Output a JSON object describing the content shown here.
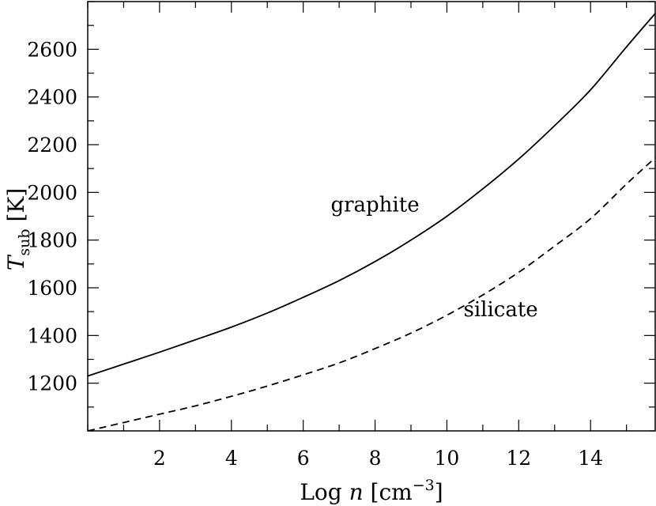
{
  "chart_data": {
    "type": "line",
    "title": "",
    "xlabel": {
      "prefix": "Log ",
      "var": "n",
      "unit_open": " [cm",
      "unit_exp": "−3",
      "unit_close": "]"
    },
    "ylabel": {
      "var": "T",
      "sub": "sub",
      "unit": " [K]"
    },
    "xlim": [
      0,
      15.8
    ],
    "ylim": [
      1000,
      2800
    ],
    "x_ticks": [
      2,
      4,
      6,
      8,
      10,
      12,
      14
    ],
    "x_tick_labels": [
      "2",
      "4",
      "6",
      "8",
      "10",
      "12",
      "14"
    ],
    "x_minor_step": 1,
    "y_ticks": [
      1200,
      1400,
      1600,
      1800,
      2000,
      2200,
      2400,
      2600
    ],
    "y_tick_labels": [
      "1200",
      "1400",
      "1600",
      "1800",
      "2000",
      "2200",
      "2400",
      "2600"
    ],
    "y_minor_step": 100,
    "grid": false,
    "series": [
      {
        "key": "graphite",
        "style": "solid",
        "x": [
          0,
          1,
          2,
          3,
          4,
          5,
          6,
          7,
          8,
          9,
          10,
          11,
          12,
          13,
          14,
          15,
          15.8
        ],
        "y": [
          1230,
          1280,
          1330,
          1382,
          1435,
          1494,
          1560,
          1630,
          1710,
          1800,
          1900,
          2015,
          2140,
          2280,
          2430,
          2610,
          2750
        ]
      },
      {
        "key": "silicate",
        "style": "dashed",
        "x": [
          0,
          1,
          2,
          3,
          4,
          5,
          6,
          7,
          8,
          9,
          10,
          11,
          12,
          13,
          14,
          15,
          15.8
        ],
        "y": [
          1000,
          1035,
          1070,
          1105,
          1145,
          1188,
          1235,
          1285,
          1345,
          1410,
          1485,
          1570,
          1665,
          1775,
          1890,
          2035,
          2145
        ]
      }
    ],
    "annotations": [
      {
        "text": "graphite",
        "x": 8.0,
        "y": 1920
      },
      {
        "text": "silicate",
        "x": 11.5,
        "y": 1480
      }
    ]
  }
}
